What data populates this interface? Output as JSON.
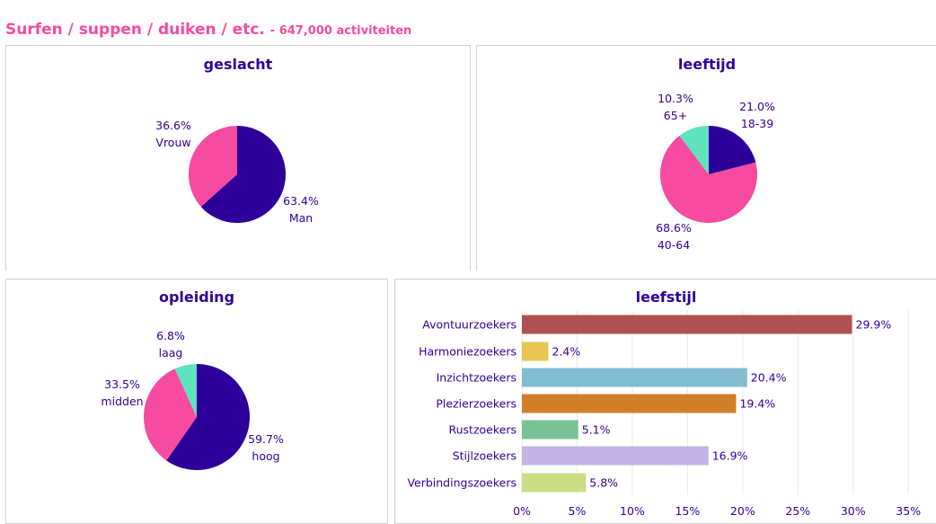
{
  "header": {
    "title": "Surfen / suppen / duiken / etc.",
    "subtitle": "- 647,000 activiteiten"
  },
  "chart_data": [
    {
      "type": "pie",
      "title": "geslacht",
      "slices": [
        {
          "label": "Man",
          "value": 63.4,
          "pct": "63.4%",
          "color": "#2d0099"
        },
        {
          "label": "Vrouw",
          "value": 36.6,
          "pct": "36.6%",
          "color": "#f74aa1"
        }
      ]
    },
    {
      "type": "pie",
      "title": "leeftijd",
      "slices": [
        {
          "label": "18-39",
          "value": 21.0,
          "pct": "21.0%",
          "color": "#2d0099"
        },
        {
          "label": "40-64",
          "value": 68.6,
          "pct": "68.6%",
          "color": "#f74aa1"
        },
        {
          "label": "65+",
          "value": 10.3,
          "pct": "10.3%",
          "color": "#5ee3bd"
        }
      ]
    },
    {
      "type": "pie",
      "title": "opleiding",
      "slices": [
        {
          "label": "hoog",
          "value": 59.7,
          "pct": "59.7%",
          "color": "#2d0099"
        },
        {
          "label": "midden",
          "value": 33.5,
          "pct": "33.5%",
          "color": "#f74aa1"
        },
        {
          "label": "laag",
          "value": 6.8,
          "pct": "6.8%",
          "color": "#5ee3bd"
        }
      ]
    },
    {
      "type": "bar",
      "orientation": "horizontal",
      "title": "leefstijl",
      "categories": [
        "Avontuurzoekers",
        "Harmoniezoekers",
        "Inzichtzoekers",
        "Plezierzoekers",
        "Rustzoekers",
        "Stijlzoekers",
        "Verbindingszoekers"
      ],
      "values": [
        29.9,
        2.4,
        20.4,
        19.4,
        5.1,
        16.9,
        5.8
      ],
      "value_labels": [
        "29.9%",
        "2.4%",
        "20.4%",
        "19.4%",
        "5.1%",
        "16.9%",
        "5.8%"
      ],
      "colors": [
        "#b05050",
        "#e6c650",
        "#82bcd2",
        "#d07e2a",
        "#78c296",
        "#c3b4e3",
        "#cadd82"
      ],
      "xlim": [
        0,
        36
      ],
      "xticks": [
        0,
        5,
        10,
        15,
        20,
        25,
        30,
        35
      ],
      "xtick_labels": [
        "0%",
        "5%",
        "10%",
        "15%",
        "20%",
        "25%",
        "30%",
        "35%"
      ],
      "grid": true
    }
  ]
}
